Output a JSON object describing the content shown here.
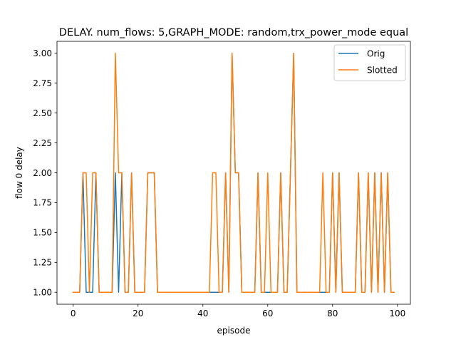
{
  "chart_data": {
    "type": "line",
    "title": "DELAY. num_flows: 5,GRAPH_MODE: random,trx_power_mode equal",
    "xlabel": "episode",
    "ylabel": "flow 0 delay",
    "xlim": [
      -5,
      104
    ],
    "ylim": [
      0.9,
      3.1
    ],
    "xticks": [
      0,
      20,
      40,
      60,
      80,
      100
    ],
    "yticks": [
      1.0,
      1.25,
      1.5,
      1.75,
      2.0,
      2.25,
      2.5,
      2.75,
      3.0
    ],
    "legend_position": "top-right",
    "grid": false,
    "x": [
      0,
      1,
      2,
      3,
      4,
      5,
      6,
      7,
      8,
      9,
      10,
      11,
      12,
      13,
      14,
      15,
      16,
      17,
      18,
      19,
      20,
      21,
      22,
      23,
      24,
      25,
      26,
      27,
      28,
      29,
      30,
      31,
      32,
      33,
      34,
      35,
      36,
      37,
      38,
      39,
      40,
      41,
      42,
      43,
      44,
      45,
      46,
      47,
      48,
      49,
      50,
      51,
      52,
      53,
      54,
      55,
      56,
      57,
      58,
      59,
      60,
      61,
      62,
      63,
      64,
      65,
      66,
      67,
      68,
      69,
      70,
      71,
      72,
      73,
      74,
      75,
      76,
      77,
      78,
      79,
      80,
      81,
      82,
      83,
      84,
      85,
      86,
      87,
      88,
      89,
      90,
      91,
      92,
      93,
      94,
      95,
      96,
      97,
      98,
      99
    ],
    "series": [
      {
        "name": "Orig",
        "color": "#1f77b4",
        "values": [
          1,
          1,
          1,
          2,
          1,
          1,
          1,
          2,
          1,
          1,
          1,
          1,
          1,
          2,
          1,
          2,
          1,
          1,
          2,
          1,
          1,
          1,
          1,
          2,
          2,
          2,
          1,
          1,
          1,
          1,
          1,
          1,
          1,
          1,
          1,
          1,
          1,
          1,
          1,
          1,
          1,
          1,
          1,
          1,
          1,
          1,
          1,
          2,
          1,
          3,
          2,
          2,
          1,
          1,
          1,
          1,
          1,
          2,
          1,
          1,
          1,
          1,
          1,
          1,
          2,
          1,
          1,
          2,
          3,
          1,
          1,
          1,
          1,
          1,
          1,
          1,
          1,
          1,
          1,
          1,
          2,
          1,
          2,
          1,
          1,
          1,
          1,
          1,
          2,
          1,
          1,
          2,
          1,
          2,
          1,
          2,
          1,
          2,
          1,
          1
        ]
      },
      {
        "name": "Slotted",
        "color": "#ff7f0e",
        "values": [
          1,
          1,
          1,
          2,
          2,
          1,
          2,
          2,
          1,
          1,
          1,
          1,
          1,
          3,
          2,
          2,
          1,
          1,
          2,
          1,
          1,
          1,
          1,
          2,
          2,
          2,
          1,
          1,
          1,
          1,
          1,
          1,
          1,
          1,
          1,
          1,
          1,
          1,
          1,
          1,
          1,
          1,
          1,
          2,
          2,
          1,
          1,
          2,
          1,
          3,
          2,
          2,
          1,
          1,
          1,
          1,
          1,
          2,
          1,
          1,
          2,
          1,
          1,
          1,
          2,
          1,
          1,
          2,
          3,
          1,
          1,
          1,
          1,
          1,
          1,
          1,
          1,
          2,
          1,
          1,
          2,
          1,
          2,
          1,
          1,
          1,
          1,
          1,
          2,
          1,
          1,
          2,
          1,
          2,
          1,
          2,
          1,
          2,
          1,
          1
        ]
      }
    ]
  }
}
